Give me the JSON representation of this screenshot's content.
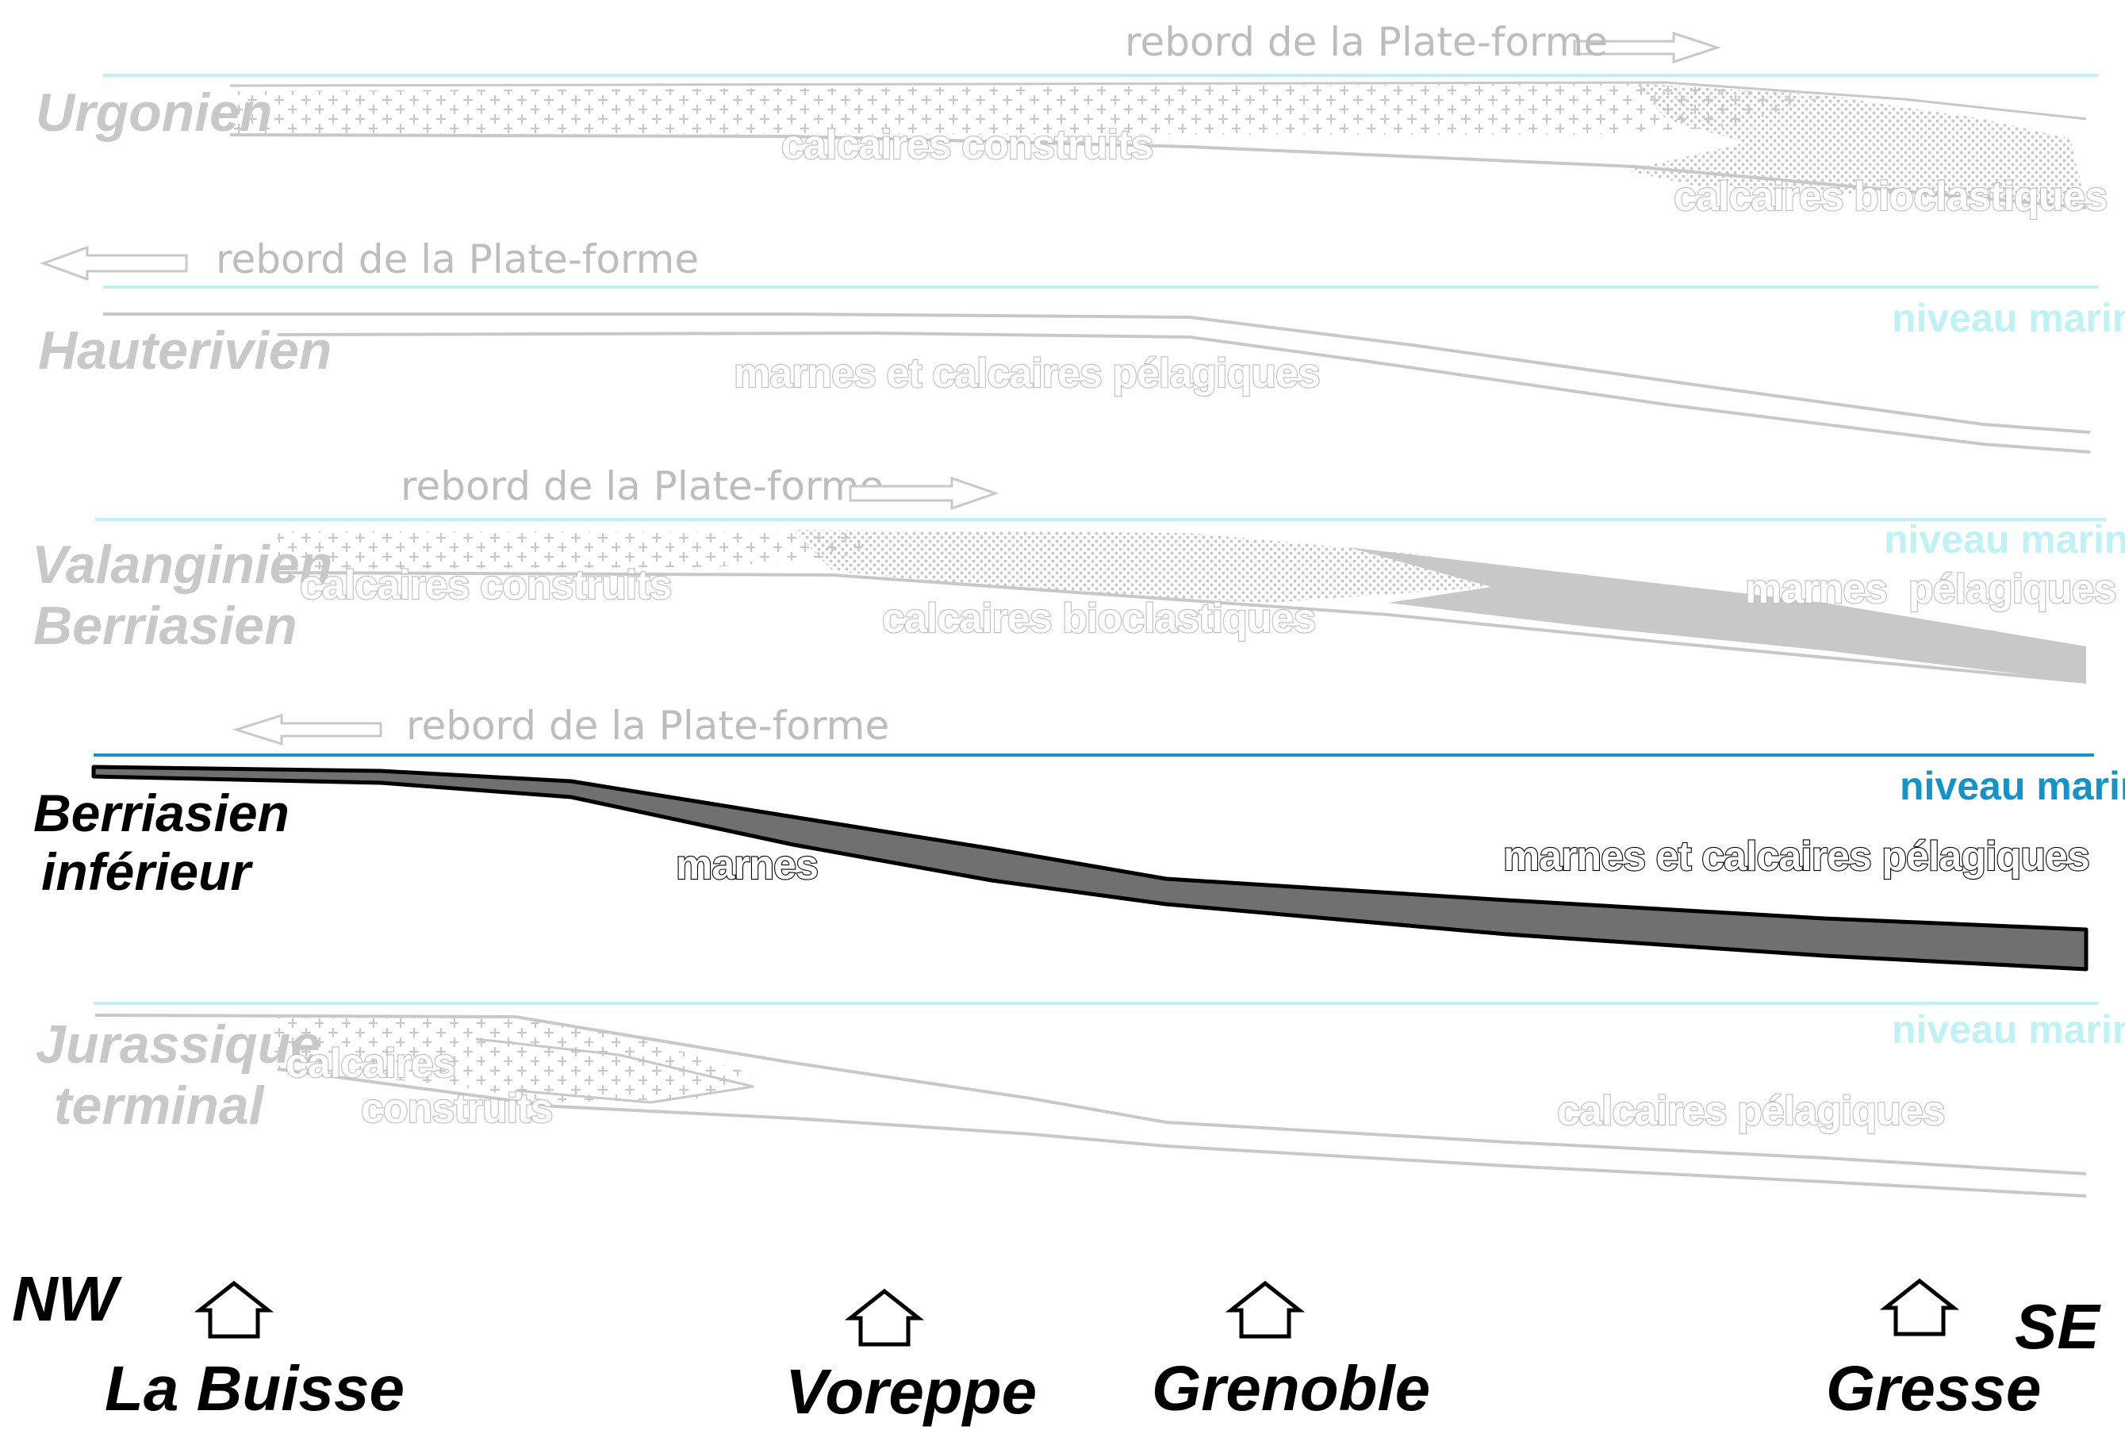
{
  "colors": {
    "ghost": "#c8c8c8",
    "ghost_text": "#bdbdbd",
    "sea_ghost": "#bff2f4",
    "sea_active": "#1593c9",
    "active_fill": "#707070",
    "active_text": "#000000"
  },
  "stages": [
    {
      "id": "urgonien",
      "lines": [
        "Urgonien"
      ],
      "active": false
    },
    {
      "id": "hauterivien",
      "lines": [
        "Hauterivien"
      ],
      "active": false
    },
    {
      "id": "valanginien",
      "lines": [
        "Valanginien",
        "Berriasien"
      ],
      "active": false
    },
    {
      "id": "berriasien-inf",
      "lines": [
        "Berriasien",
        "inférieur"
      ],
      "active": true
    },
    {
      "id": "jurassique",
      "lines": [
        "Jurassique",
        "terminal"
      ],
      "active": false
    }
  ],
  "rebord_label": "rebord de la Plate-forme",
  "niveau_marin": "niveau marin",
  "units": {
    "urgonien": [
      "calcaires construits",
      "calcaires bioclastiques"
    ],
    "hauterivien": [
      "marnes et calcaires pélagiques"
    ],
    "valanginien": [
      "calcaires construits",
      "calcaires bioclastiques",
      "marnes  pélagiques"
    ],
    "berriasien_inf": [
      "marnes",
      "marnes et calcaires pélagiques"
    ],
    "jurassique": [
      "calcaires",
      "construits",
      "calcaires pélagiques"
    ]
  },
  "orientation": {
    "left": "NW",
    "right": "SE"
  },
  "localities": [
    "La Buisse",
    "Voreppe",
    "Grenoble",
    "Gresse"
  ]
}
